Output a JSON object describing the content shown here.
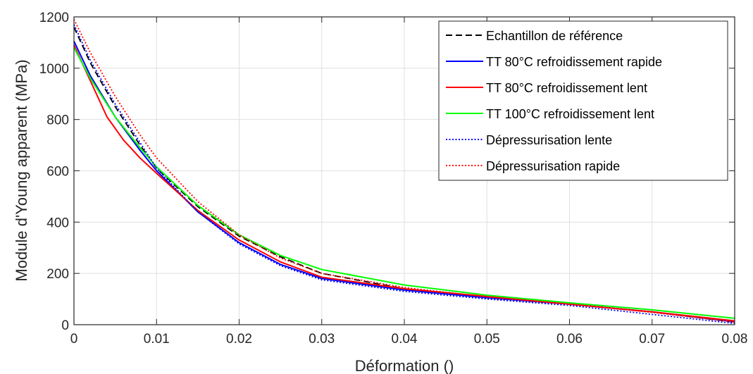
{
  "chart_data": {
    "type": "line",
    "title": "",
    "xlabel": "Déformation ()",
    "ylabel": "Module d'Young apparent (MPa)",
    "xlim": [
      0,
      0.08
    ],
    "ylim": [
      0,
      1200
    ],
    "x_ticks": [
      0,
      0.01,
      0.02,
      0.03,
      0.04,
      0.05,
      0.06,
      0.07,
      0.08
    ],
    "x_tick_labels": [
      "0",
      "0.01",
      "0.02",
      "0.03",
      "0.04",
      "0.05",
      "0.06",
      "0.07",
      "0.08"
    ],
    "y_ticks": [
      0,
      200,
      400,
      600,
      800,
      1000,
      1200
    ],
    "y_tick_labels": [
      "0",
      "200",
      "400",
      "600",
      "800",
      "1000",
      "1200"
    ],
    "grid": true,
    "legend_position": "top-right",
    "series": [
      {
        "name": "Echantillon de référence",
        "color": "#000000",
        "line_style": "dashed",
        "x": [
          0,
          0.002,
          0.005,
          0.008,
          0.01,
          0.015,
          0.02,
          0.025,
          0.03,
          0.04,
          0.05,
          0.06,
          0.07,
          0.08
        ],
        "y": [
          1160,
          1020,
          850,
          700,
          610,
          460,
          345,
          265,
          200,
          140,
          105,
          80,
          50,
          10
        ]
      },
      {
        "name": "TT 80°C refroidissement rapide",
        "color": "#0000ff",
        "line_style": "solid",
        "x": [
          0,
          0.002,
          0.005,
          0.008,
          0.01,
          0.015,
          0.02,
          0.025,
          0.03,
          0.04,
          0.05,
          0.06,
          0.07,
          0.08
        ],
        "y": [
          1105,
          970,
          810,
          680,
          600,
          440,
          320,
          235,
          180,
          135,
          105,
          80,
          50,
          12
        ]
      },
      {
        "name": "TT 80°C refroidissement lent",
        "color": "#ff0000",
        "line_style": "solid",
        "x": [
          0,
          0.002,
          0.004,
          0.006,
          0.008,
          0.01,
          0.015,
          0.02,
          0.025,
          0.03,
          0.04,
          0.05,
          0.06,
          0.07,
          0.08
        ],
        "y": [
          1090,
          950,
          810,
          720,
          650,
          590,
          445,
          330,
          245,
          185,
          140,
          110,
          80,
          50,
          15
        ]
      },
      {
        "name": "TT 100°C refroidissement lent",
        "color": "#00ff00",
        "line_style": "solid",
        "x": [
          0,
          0.002,
          0.005,
          0.008,
          0.01,
          0.015,
          0.02,
          0.025,
          0.03,
          0.04,
          0.05,
          0.06,
          0.07,
          0.08
        ],
        "y": [
          1080,
          960,
          810,
          690,
          615,
          465,
          350,
          270,
          215,
          155,
          115,
          85,
          58,
          25
        ]
      },
      {
        "name": "Dépressurisation lente",
        "color": "#0000ff",
        "line_style": "dotted",
        "x": [
          0,
          0.002,
          0.005,
          0.008,
          0.01,
          0.015,
          0.02,
          0.025,
          0.03,
          0.04,
          0.05,
          0.06,
          0.07,
          0.08
        ],
        "y": [
          1170,
          1030,
          860,
          710,
          610,
          440,
          315,
          230,
          175,
          130,
          100,
          75,
          40,
          5
        ]
      },
      {
        "name": "Dépressurisation rapide",
        "color": "#ff0000",
        "line_style": "dotted",
        "x": [
          0,
          0.002,
          0.005,
          0.008,
          0.01,
          0.015,
          0.02,
          0.025,
          0.03,
          0.04,
          0.05,
          0.06,
          0.07,
          0.08
        ],
        "y": [
          1190,
          1060,
          890,
          740,
          650,
          480,
          350,
          260,
          200,
          145,
          108,
          80,
          48,
          10
        ]
      }
    ]
  }
}
